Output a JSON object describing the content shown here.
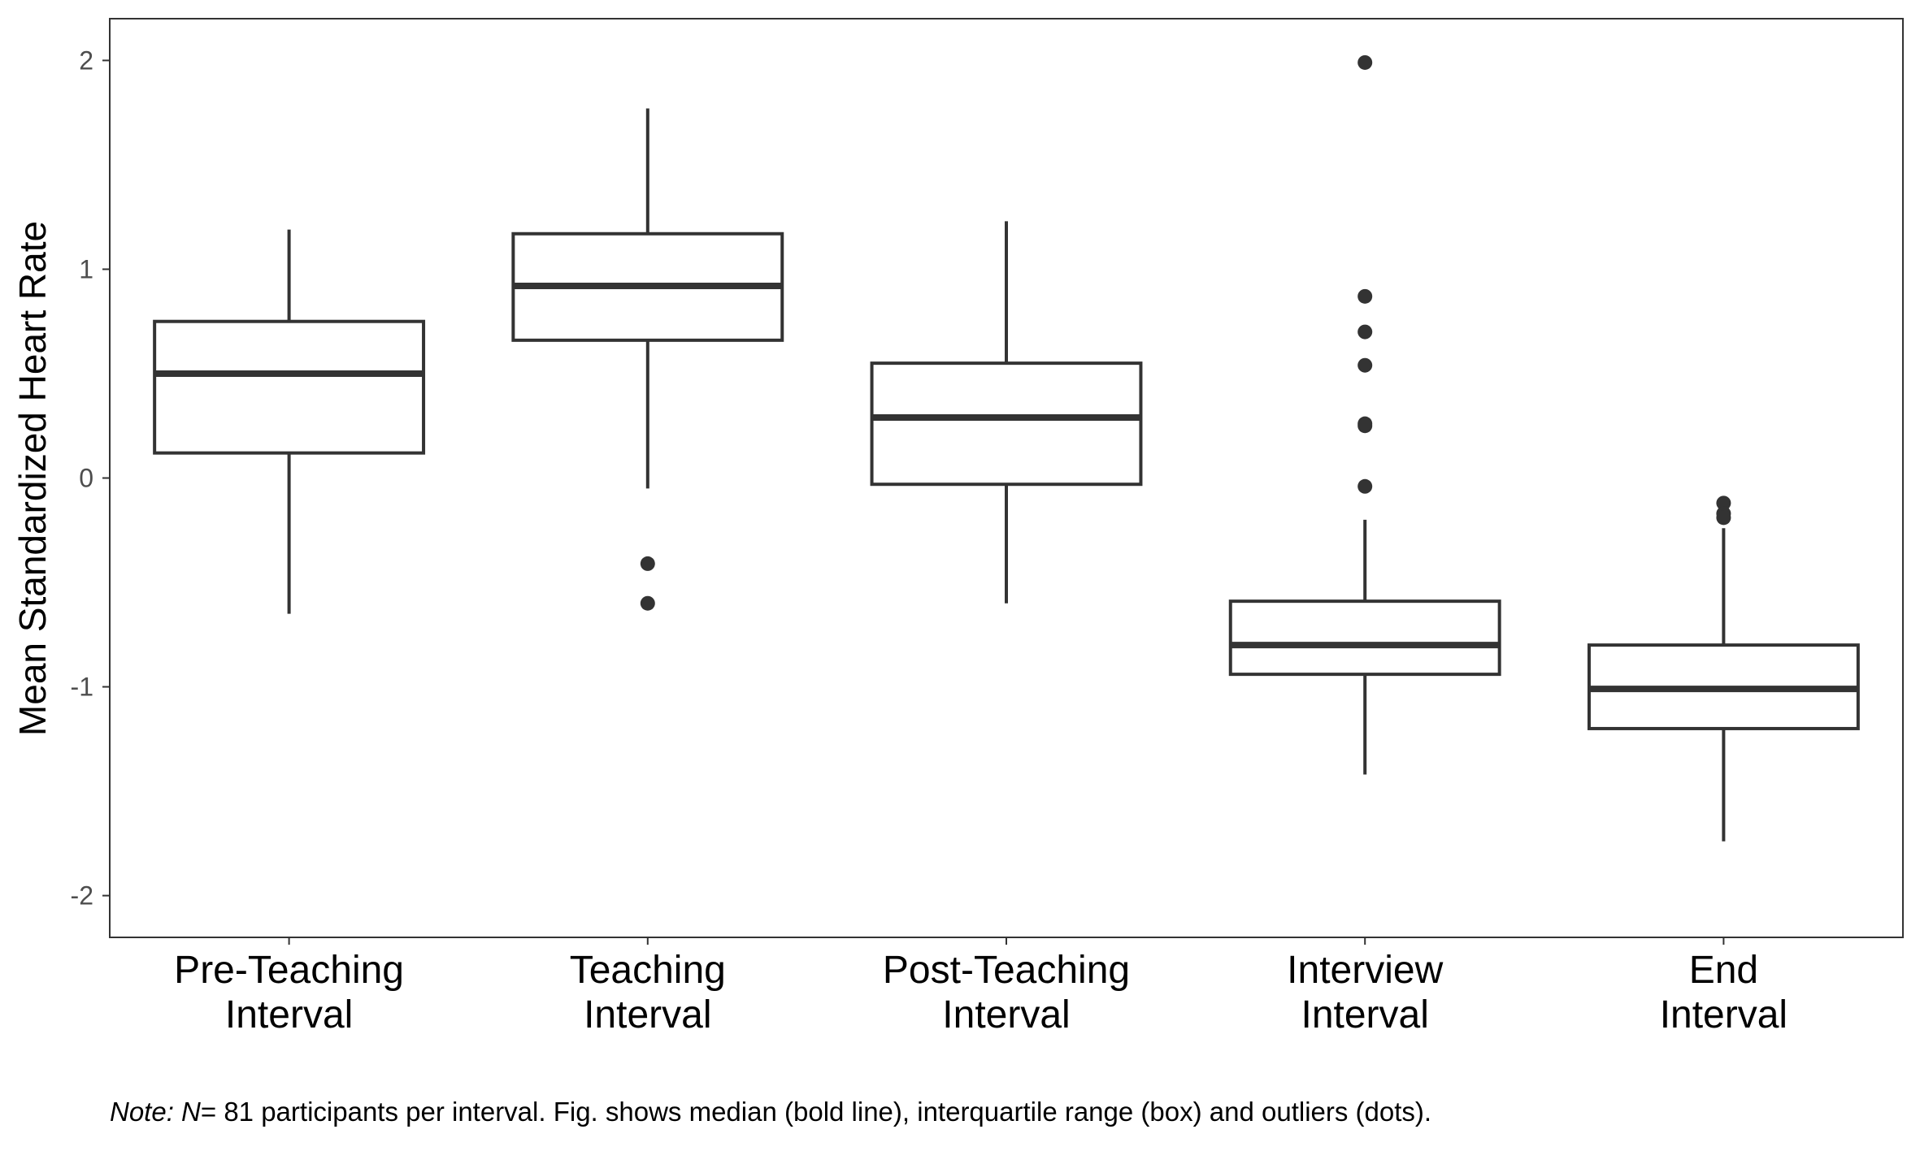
{
  "chart_data": {
    "type": "box",
    "ylabel": "Mean Standardized Heart Rate",
    "xlabel": "",
    "ylim": [
      -2.2,
      2.2
    ],
    "yticks": [
      -2,
      -1,
      0,
      1,
      2
    ],
    "grid": false,
    "categories": [
      [
        "Pre-Teaching",
        "Interval"
      ],
      [
        "Teaching",
        "Interval"
      ],
      [
        "Post-Teaching",
        "Interval"
      ],
      [
        "Interview",
        "Interval"
      ],
      [
        "End",
        "Interval"
      ]
    ],
    "boxes": [
      {
        "whisker_low": -0.65,
        "q1": 0.12,
        "median": 0.5,
        "q3": 0.75,
        "whisker_high": 1.19,
        "outliers": []
      },
      {
        "whisker_low": -0.05,
        "q1": 0.66,
        "median": 0.92,
        "q3": 1.17,
        "whisker_high": 1.77,
        "outliers": [
          -0.41,
          -0.6
        ]
      },
      {
        "whisker_low": -0.6,
        "q1": -0.03,
        "median": 0.29,
        "q3": 0.55,
        "whisker_high": 1.23,
        "outliers": []
      },
      {
        "whisker_low": -1.42,
        "q1": -0.94,
        "median": -0.8,
        "q3": -0.59,
        "whisker_high": -0.2,
        "outliers": [
          1.99,
          0.87,
          0.7,
          0.54,
          0.26,
          0.25,
          -0.04
        ]
      },
      {
        "whisker_low": -1.74,
        "q1": -1.2,
        "median": -1.01,
        "q3": -0.8,
        "whisker_high": -0.24,
        "outliers": [
          -0.12,
          -0.17,
          -0.19
        ]
      }
    ]
  },
  "note": {
    "prefix_italic": "Note:",
    "n_italic": "N",
    "text": "= 81 participants per interval. Fig. shows median (bold line), interquartile range (box) and outliers (dots)."
  }
}
